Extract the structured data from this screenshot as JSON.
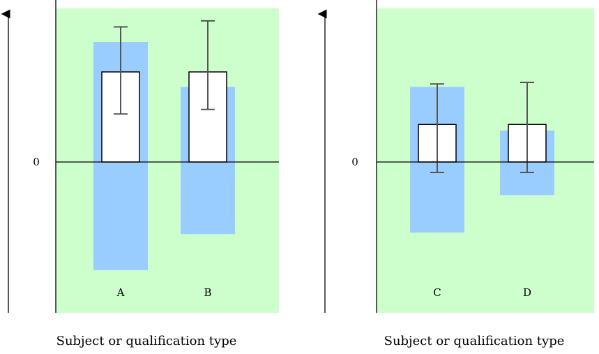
{
  "colors": {
    "plot_background": "#ccffcc",
    "range_bar": "#99ccff",
    "box_fill": "#ffffff",
    "box_stroke": "#000000",
    "error_bar": "#555555",
    "axis": "#000000"
  },
  "chart_data": [
    {
      "type": "bar",
      "title": "",
      "xlabel": "Subject or qualification type",
      "ylabel": "",
      "y_tick_labels": [
        "0"
      ],
      "ylim": [
        -1.0,
        1.0
      ],
      "categories": [
        "A",
        "B"
      ],
      "series": [
        {
          "values": [
            0.6,
            0.6
          ]
        },
        {
          "values": [
            -0.72,
            -0.48
          ]
        },
        {
          "values": [
            0.8,
            0.5
          ]
        },
        {
          "values": [
            0.9,
            0.94
          ]
        },
        {
          "values": [
            0.32,
            0.35
          ]
        }
      ]
    },
    {
      "type": "bar",
      "title": "",
      "xlabel": "Subject or qualification type",
      "ylabel": "",
      "y_tick_labels": [
        "0"
      ],
      "ylim": [
        -1.0,
        1.0
      ],
      "categories": [
        "C",
        "D"
      ],
      "series": [
        {
          "values": [
            0.25,
            0.25
          ]
        },
        {
          "values": [
            -0.47,
            -0.22
          ]
        },
        {
          "values": [
            0.5,
            0.21
          ]
        },
        {
          "values": [
            0.52,
            0.53
          ]
        },
        {
          "values": [
            -0.07,
            -0.07
          ]
        }
      ]
    }
  ]
}
